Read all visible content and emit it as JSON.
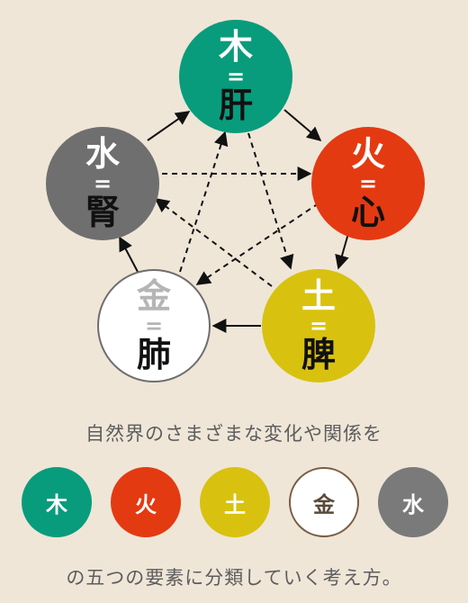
{
  "elements": {
    "wood": {
      "element": "木",
      "eq": "=",
      "organ": "肝",
      "color": "#089c7c"
    },
    "fire": {
      "element": "火",
      "eq": "=",
      "organ": "心",
      "color": "#e43a12"
    },
    "earth": {
      "element": "土",
      "eq": "=",
      "organ": "脾",
      "color": "#d8c20f"
    },
    "metal": {
      "element": "金",
      "eq": "=",
      "organ": "肺",
      "color": "#ffffff"
    },
    "water": {
      "element": "水",
      "eq": "=",
      "organ": "腎",
      "color": "#6f6f6f"
    }
  },
  "caption_top": "自然界のさまざまな変化や関係を",
  "legend": [
    "木",
    "火",
    "土",
    "金",
    "水"
  ],
  "caption_bottom": "の五つの要素に分類していく考え方。"
}
